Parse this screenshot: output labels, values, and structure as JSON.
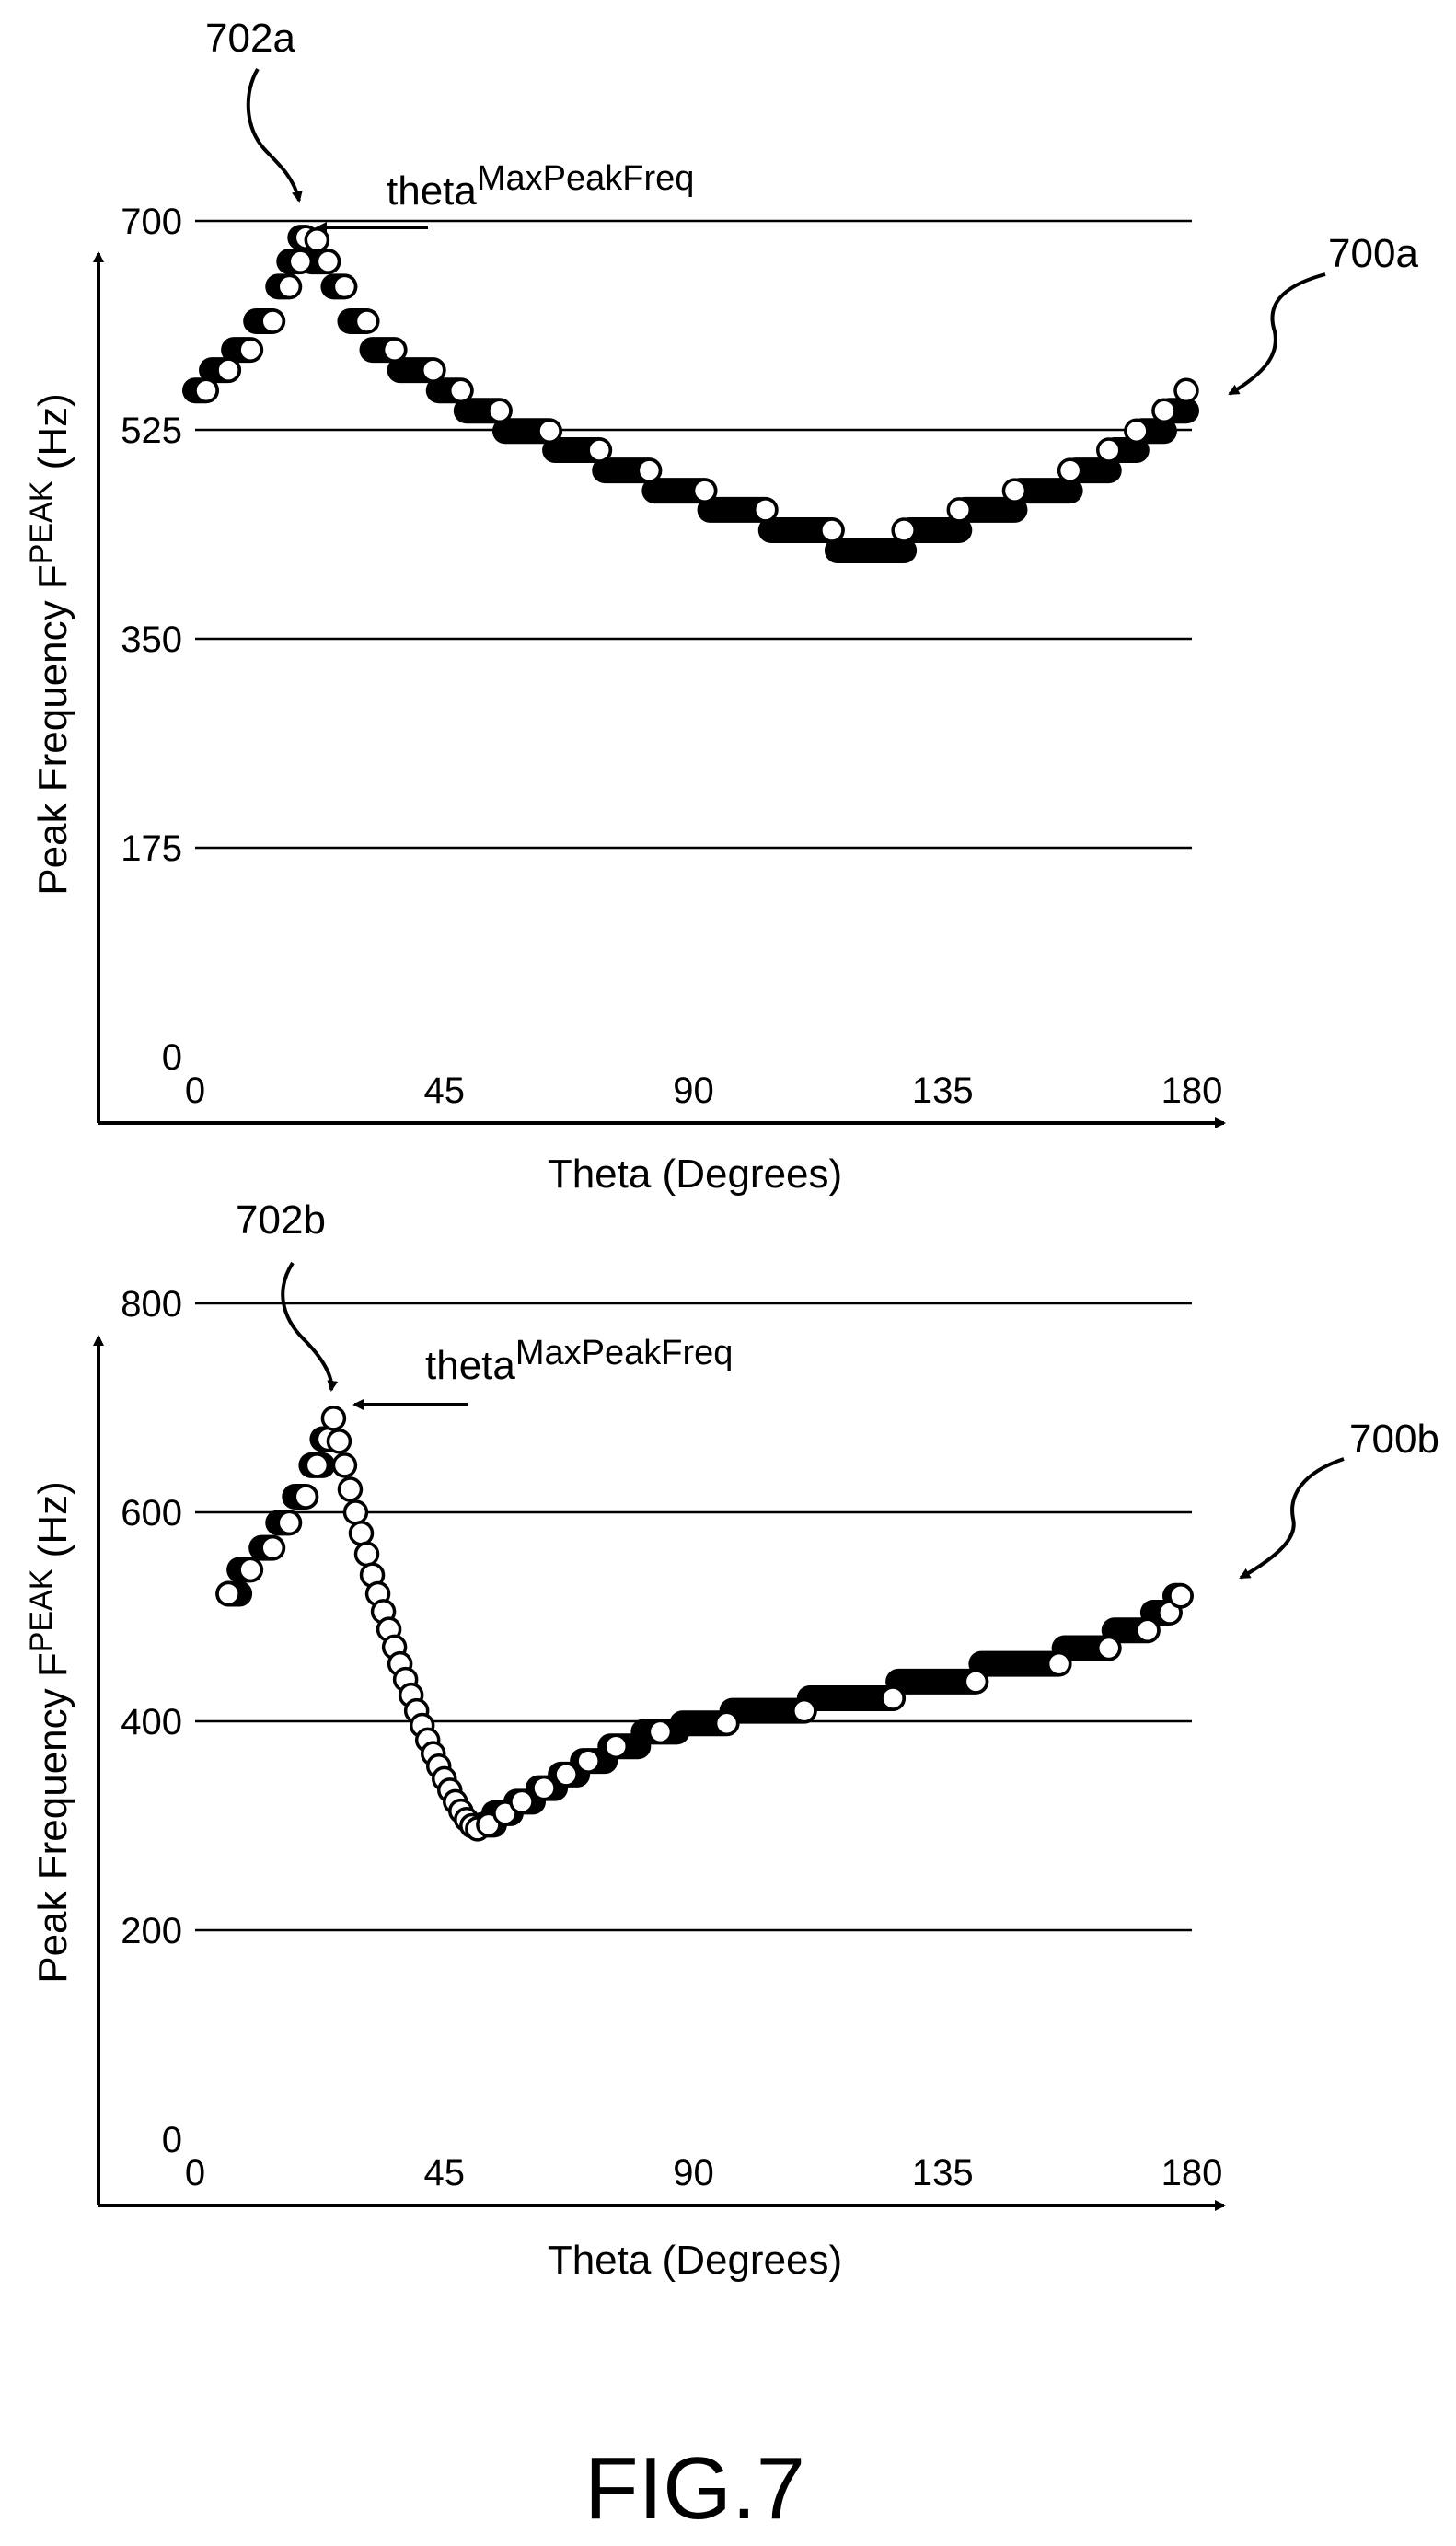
{
  "figure_label": "FIG.7",
  "chart_data": [
    {
      "type": "scatter",
      "ref_label": "702a",
      "series_ref_label": "700a",
      "annotation": {
        "base": "theta",
        "superscript": "MaxPeakFreq",
        "theta": 20,
        "value": 686
      },
      "xlabel": "Theta (Degrees)",
      "ylabel": {
        "base": "Peak Frequency F",
        "superscript": "PEAK",
        "unit": " (Hz)"
      },
      "xlim": [
        0,
        180
      ],
      "ylim": [
        0,
        700
      ],
      "xticks": [
        "0",
        "45",
        "90",
        "135",
        "180"
      ],
      "yticks": [
        "0",
        "175",
        "350",
        "525",
        "700"
      ],
      "grid": true,
      "open_points": [
        {
          "x": 2,
          "y": 558
        },
        {
          "x": 6,
          "y": 575
        },
        {
          "x": 10,
          "y": 592
        },
        {
          "x": 14,
          "y": 616
        },
        {
          "x": 17,
          "y": 645
        },
        {
          "x": 19,
          "y": 666
        },
        {
          "x": 20,
          "y": 686
        },
        {
          "x": 22,
          "y": 684
        },
        {
          "x": 24,
          "y": 666
        },
        {
          "x": 27,
          "y": 645
        },
        {
          "x": 31,
          "y": 616
        },
        {
          "x": 36,
          "y": 592
        },
        {
          "x": 43,
          "y": 575
        },
        {
          "x": 48,
          "y": 558
        },
        {
          "x": 55,
          "y": 541
        },
        {
          "x": 64,
          "y": 524
        },
        {
          "x": 73,
          "y": 508
        },
        {
          "x": 82,
          "y": 491
        },
        {
          "x": 92,
          "y": 474
        },
        {
          "x": 103,
          "y": 458
        },
        {
          "x": 115,
          "y": 441
        },
        {
          "x": 128,
          "y": 441
        },
        {
          "x": 138,
          "y": 458
        },
        {
          "x": 148,
          "y": 474
        },
        {
          "x": 158,
          "y": 491
        },
        {
          "x": 165,
          "y": 508
        },
        {
          "x": 170,
          "y": 524
        },
        {
          "x": 175,
          "y": 541
        },
        {
          "x": 179,
          "y": 558
        }
      ],
      "filled_runs": [
        {
          "x0": 0,
          "x1": 2,
          "y": 558
        },
        {
          "x0": 3,
          "x1": 6,
          "y": 575
        },
        {
          "x0": 7,
          "x1": 10,
          "y": 592
        },
        {
          "x0": 11,
          "x1": 14,
          "y": 616
        },
        {
          "x0": 15,
          "x1": 17,
          "y": 645
        },
        {
          "x0": 17,
          "x1": 19,
          "y": 666
        },
        {
          "x0": 19,
          "x1": 20,
          "y": 686
        },
        {
          "x0": 21,
          "x1": 24,
          "y": 666
        },
        {
          "x0": 25,
          "x1": 27,
          "y": 645
        },
        {
          "x0": 28,
          "x1": 31,
          "y": 616
        },
        {
          "x0": 32,
          "x1": 36,
          "y": 592
        },
        {
          "x0": 37,
          "x1": 43,
          "y": 575
        },
        {
          "x0": 44,
          "x1": 48,
          "y": 558
        },
        {
          "x0": 49,
          "x1": 55,
          "y": 541
        },
        {
          "x0": 56,
          "x1": 64,
          "y": 524
        },
        {
          "x0": 65,
          "x1": 73,
          "y": 508
        },
        {
          "x0": 74,
          "x1": 82,
          "y": 491
        },
        {
          "x0": 83,
          "x1": 92,
          "y": 474
        },
        {
          "x0": 93,
          "x1": 103,
          "y": 458
        },
        {
          "x0": 104,
          "x1": 115,
          "y": 441
        },
        {
          "x0": 116,
          "x1": 128,
          "y": 424
        },
        {
          "x0": 129,
          "x1": 138,
          "y": 441
        },
        {
          "x0": 139,
          "x1": 148,
          "y": 458
        },
        {
          "x0": 149,
          "x1": 158,
          "y": 474
        },
        {
          "x0": 159,
          "x1": 165,
          "y": 491
        },
        {
          "x0": 166,
          "x1": 170,
          "y": 508
        },
        {
          "x0": 171,
          "x1": 175,
          "y": 524
        },
        {
          "x0": 176,
          "x1": 179,
          "y": 541
        }
      ]
    },
    {
      "type": "scatter",
      "ref_label": "702b",
      "series_ref_label": "700b",
      "annotation": {
        "base": "theta",
        "superscript": "MaxPeakFreq",
        "theta": 25,
        "value": 690
      },
      "xlabel": "Theta (Degrees)",
      "ylabel": {
        "base": "Peak Frequency F",
        "superscript": "PEAK",
        "unit": " (Hz)"
      },
      "xlim": [
        0,
        180
      ],
      "ylim": [
        0,
        800
      ],
      "xticks": [
        "0",
        "45",
        "90",
        "135",
        "180"
      ],
      "yticks": [
        "0",
        "200",
        "400",
        "600",
        "800"
      ],
      "grid": true,
      "open_points": [
        {
          "x": 6,
          "y": 522
        },
        {
          "x": 10,
          "y": 545
        },
        {
          "x": 14,
          "y": 566
        },
        {
          "x": 17,
          "y": 590
        },
        {
          "x": 20,
          "y": 615
        },
        {
          "x": 22,
          "y": 645
        },
        {
          "x": 24,
          "y": 670
        },
        {
          "x": 25,
          "y": 690
        },
        {
          "x": 26,
          "y": 668
        },
        {
          "x": 27,
          "y": 645
        },
        {
          "x": 28,
          "y": 622
        },
        {
          "x": 29,
          "y": 600
        },
        {
          "x": 30,
          "y": 580
        },
        {
          "x": 31,
          "y": 560
        },
        {
          "x": 32,
          "y": 540
        },
        {
          "x": 33,
          "y": 522
        },
        {
          "x": 34,
          "y": 505
        },
        {
          "x": 35,
          "y": 488
        },
        {
          "x": 36,
          "y": 471
        },
        {
          "x": 37,
          "y": 455
        },
        {
          "x": 38,
          "y": 440
        },
        {
          "x": 39,
          "y": 425
        },
        {
          "x": 40,
          "y": 410
        },
        {
          "x": 41,
          "y": 396
        },
        {
          "x": 42,
          "y": 382
        },
        {
          "x": 43,
          "y": 369
        },
        {
          "x": 44,
          "y": 357
        },
        {
          "x": 45,
          "y": 345
        },
        {
          "x": 46,
          "y": 334
        },
        {
          "x": 47,
          "y": 323
        },
        {
          "x": 48,
          "y": 314
        },
        {
          "x": 49,
          "y": 306
        },
        {
          "x": 50,
          "y": 300
        },
        {
          "x": 51,
          "y": 297
        },
        {
          "x": 53,
          "y": 301
        },
        {
          "x": 56,
          "y": 312
        },
        {
          "x": 59,
          "y": 323
        },
        {
          "x": 63,
          "y": 336
        },
        {
          "x": 67,
          "y": 349
        },
        {
          "x": 71,
          "y": 362
        },
        {
          "x": 76,
          "y": 376
        },
        {
          "x": 84,
          "y": 390
        },
        {
          "x": 96,
          "y": 398
        },
        {
          "x": 110,
          "y": 410
        },
        {
          "x": 126,
          "y": 422
        },
        {
          "x": 141,
          "y": 438
        },
        {
          "x": 156,
          "y": 455
        },
        {
          "x": 165,
          "y": 470
        },
        {
          "x": 172,
          "y": 487
        },
        {
          "x": 176,
          "y": 504
        },
        {
          "x": 178,
          "y": 520
        }
      ],
      "filled_runs": [
        {
          "x0": 6,
          "x1": 8,
          "y": 522
        },
        {
          "x0": 8,
          "x1": 10,
          "y": 545
        },
        {
          "x0": 12,
          "x1": 14,
          "y": 566
        },
        {
          "x0": 15,
          "x1": 17,
          "y": 590
        },
        {
          "x0": 18,
          "x1": 20,
          "y": 615
        },
        {
          "x0": 21,
          "x1": 23,
          "y": 645
        },
        {
          "x0": 23,
          "x1": 24,
          "y": 670
        },
        {
          "x0": 52,
          "x1": 54,
          "y": 301
        },
        {
          "x0": 54,
          "x1": 57,
          "y": 312
        },
        {
          "x0": 58,
          "x1": 61,
          "y": 323
        },
        {
          "x0": 62,
          "x1": 65,
          "y": 336
        },
        {
          "x0": 66,
          "x1": 69,
          "y": 349
        },
        {
          "x0": 70,
          "x1": 74,
          "y": 362
        },
        {
          "x0": 75,
          "x1": 80,
          "y": 376
        },
        {
          "x0": 81,
          "x1": 87,
          "y": 390
        },
        {
          "x0": 88,
          "x1": 96,
          "y": 398
        },
        {
          "x0": 97,
          "x1": 110,
          "y": 410
        },
        {
          "x0": 111,
          "x1": 126,
          "y": 422
        },
        {
          "x0": 127,
          "x1": 141,
          "y": 438
        },
        {
          "x0": 142,
          "x1": 156,
          "y": 455
        },
        {
          "x0": 157,
          "x1": 165,
          "y": 470
        },
        {
          "x0": 166,
          "x1": 172,
          "y": 487
        },
        {
          "x0": 173,
          "x1": 176,
          "y": 504
        },
        {
          "x0": 177,
          "x1": 178,
          "y": 520
        }
      ]
    }
  ]
}
